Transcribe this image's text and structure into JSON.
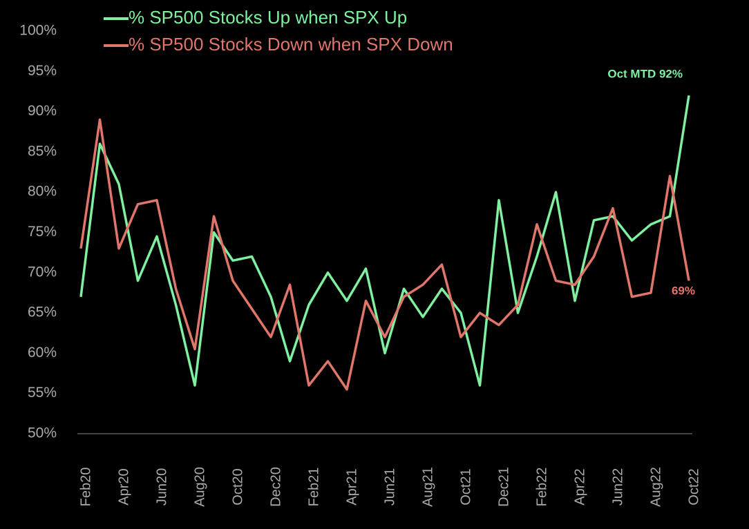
{
  "chart_data": {
    "type": "line",
    "categories": [
      "Feb20",
      null,
      "Apr20",
      null,
      "Jun20",
      null,
      "Aug20",
      null,
      "Oct20",
      null,
      "Dec20",
      null,
      "Feb21",
      null,
      "Apr21",
      null,
      "Jun21",
      null,
      "Aug21",
      null,
      "Oct21",
      null,
      "Dec21",
      null,
      "Feb22",
      null,
      "Apr22",
      null,
      "Jun22",
      null,
      "Aug22",
      null,
      "Oct22"
    ],
    "series": [
      {
        "name": "% SP500 Stocks Up when SPX Up",
        "color": "#7ef0a0",
        "values": [
          67,
          86,
          81,
          69,
          74.5,
          66,
          56,
          75,
          71.5,
          72,
          67,
          59,
          66,
          70,
          66.5,
          70.5,
          60,
          68,
          64.5,
          68,
          65,
          56,
          79,
          65,
          72,
          80,
          66.5,
          76.5,
          77,
          74,
          76,
          77,
          92
        ]
      },
      {
        "name": "% SP500 Stocks Down when SPX Down",
        "color": "#e0766a",
        "values": [
          73,
          89,
          73,
          78.5,
          79,
          68,
          60.5,
          77,
          69,
          65.5,
          62,
          68.5,
          56,
          59,
          55.5,
          66.5,
          62,
          67,
          68.5,
          71,
          62,
          65,
          63.5,
          66,
          76,
          69,
          68.5,
          72,
          78,
          67,
          67.5,
          82,
          69
        ]
      }
    ],
    "annotations": [
      {
        "text": "Oct MTD 92%",
        "color": "#7ef0a0"
      },
      {
        "text": "69%",
        "color": "#e0766a"
      }
    ],
    "ylim": [
      50,
      100
    ],
    "yticks": [
      {
        "value": 50,
        "label": "50%"
      },
      {
        "value": 55,
        "label": "55%"
      },
      {
        "value": 60,
        "label": "60%"
      },
      {
        "value": 65,
        "label": "65%"
      },
      {
        "value": 70,
        "label": "70%"
      },
      {
        "value": 75,
        "label": "75%"
      },
      {
        "value": 80,
        "label": "80%"
      },
      {
        "value": 85,
        "label": "85%"
      },
      {
        "value": 90,
        "label": "90%"
      },
      {
        "value": 95,
        "label": "95%"
      },
      {
        "value": 100,
        "label": "100%"
      }
    ]
  }
}
